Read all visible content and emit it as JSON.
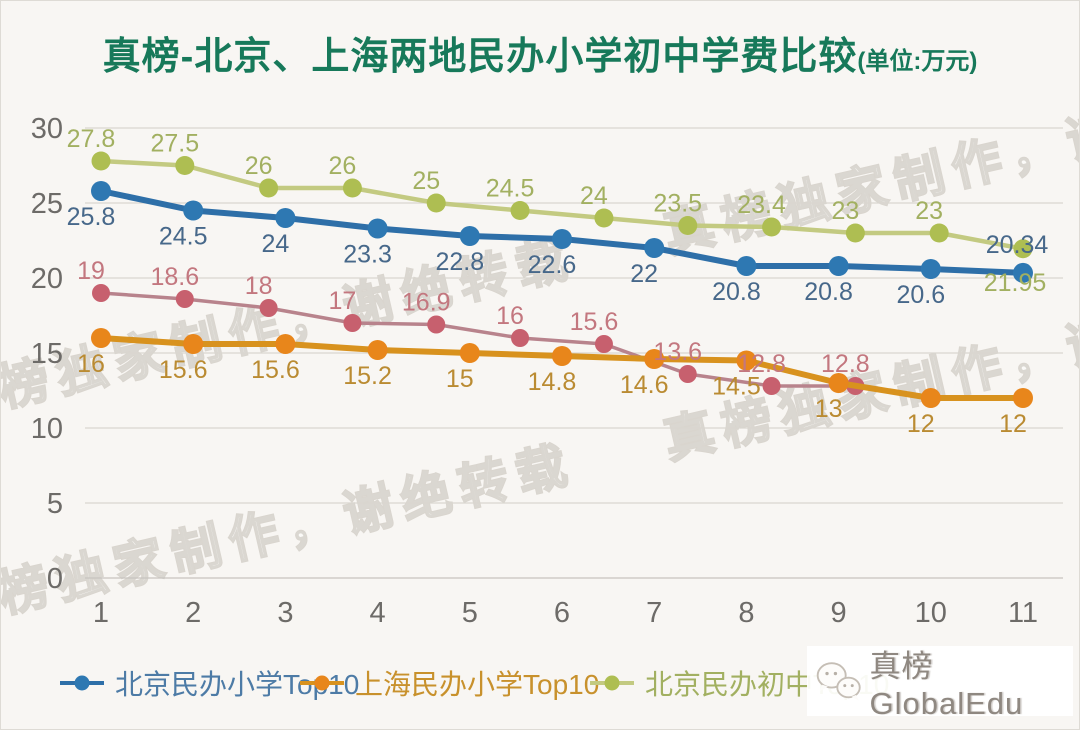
{
  "chart_data": {
    "type": "line",
    "title": "真榜-北京、上海两地民办小学初中学费比较",
    "unit_label": "(单位:万元)",
    "x_ticks": [
      1,
      2,
      3,
      4,
      5,
      6,
      7,
      8,
      9,
      10,
      11
    ],
    "y_ticks": [
      0,
      5,
      10,
      15,
      20,
      25,
      30
    ],
    "y_range": [
      0,
      30
    ],
    "grid": true,
    "legend_position": "bottom",
    "series": [
      {
        "name": "北京民办小学Top10",
        "color_key": "blue",
        "x": [
          1,
          2,
          3,
          4,
          5,
          6,
          7,
          8,
          9,
          10,
          11
        ],
        "values": [
          25.8,
          24.5,
          24,
          23.3,
          22.8,
          22.6,
          22,
          20.8,
          20.8,
          20.6,
          20.34
        ],
        "label_side": "below",
        "in_legend": true,
        "label_overrides": {
          "10": {
            "side": "above",
            "dx": -6,
            "dy": -6
          }
        }
      },
      {
        "name": "上海民办小学Top10",
        "color_key": "orange",
        "x": [
          1,
          2,
          3,
          4,
          5,
          6,
          7,
          8,
          9,
          10,
          11
        ],
        "values": [
          16,
          15.6,
          15.6,
          15.2,
          15,
          14.8,
          14.6,
          14.5,
          13,
          12,
          12
        ],
        "label_side": "below",
        "in_legend": true,
        "label_overrides": {}
      },
      {
        "name": "北京民办初中Top10",
        "color_key": "green",
        "x": [
          1,
          1.909,
          2.818,
          3.727,
          4.636,
          5.545,
          6.455,
          7.364,
          8.273,
          9.182,
          10.091,
          11
        ],
        "values": [
          27.8,
          27.5,
          26,
          26,
          25,
          24.5,
          24,
          23.5,
          23.4,
          23,
          23,
          21.95
        ],
        "label_side": "above",
        "in_legend": true,
        "label_overrides": {
          "11": {
            "side": "below",
            "dx": -8,
            "dy": 8
          }
        }
      },
      {
        "name": "",
        "color_key": "pink",
        "x": [
          1,
          1.909,
          2.818,
          3.727,
          4.636,
          5.545,
          6.455,
          7.364,
          8.273,
          9.182
        ],
        "values": [
          19,
          18.6,
          18,
          17,
          16.9,
          16,
          15.6,
          13.6,
          12.8,
          12.8
        ],
        "label_side": "above",
        "in_legend": false,
        "label_overrides": {}
      }
    ]
  },
  "colors": {
    "blue": {
      "line": "#2e6fa8",
      "dot": "#2e78b2",
      "label": "#47688a",
      "legend": "#4d7ba6"
    },
    "orange": {
      "line": "#d8921e",
      "dot": "#e8861b",
      "label": "#ba8b32",
      "legend": "#c8912c"
    },
    "green": {
      "line": "#c3ca81",
      "dot": "#aebe52",
      "label": "#a2b061",
      "legend": "#a2b061"
    },
    "pink": {
      "line": "#b8838c",
      "dot": "#c7606e",
      "label": "#c3777f",
      "legend": "#c3777f"
    },
    "title": "#17795a",
    "grid": "#d9d6d0",
    "axis": "#c7c4bf",
    "tick": "#6d6b68",
    "watermark": "#b9b2a8",
    "logo_text": "#8f8881"
  },
  "watermark": {
    "text": "真榜独家制作，谢绝转载"
  },
  "footer": {
    "logo_text": "真榜GlobalEdu",
    "logo_icon": "wechat-icon"
  }
}
